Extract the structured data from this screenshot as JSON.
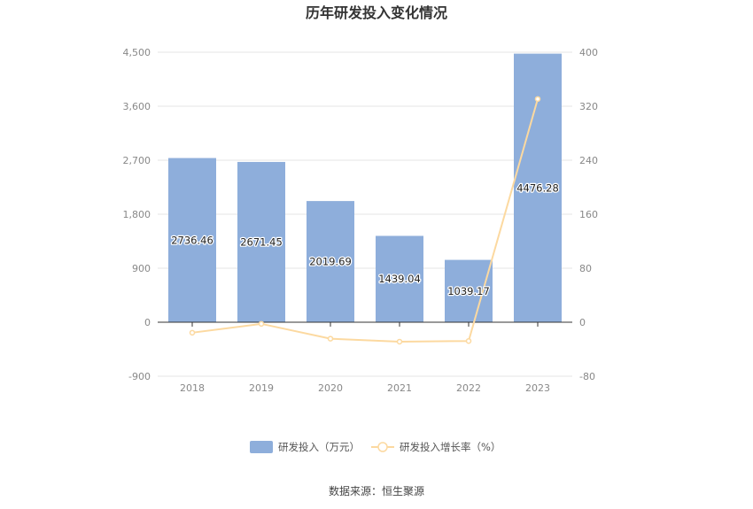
{
  "chart_data": {
    "type": "bar",
    "title": "历年研发投入变化情况",
    "categories": [
      "2018",
      "2019",
      "2020",
      "2021",
      "2022",
      "2023"
    ],
    "series": [
      {
        "name": "研发投入（万元）",
        "type": "bar",
        "axis": "left",
        "values": [
          2736.46,
          2671.45,
          2019.69,
          1439.04,
          1039.17,
          4476.28
        ],
        "labels": [
          "2736.46",
          "2671.45",
          "2019.69",
          "1439.04",
          "1039.17",
          "4476.28"
        ],
        "color": "#8eaedb"
      },
      {
        "name": "研发投入增长率（%）",
        "type": "line",
        "axis": "right",
        "values": [
          -15.5,
          -2.4,
          -24.4,
          -28.8,
          -27.8,
          330.7
        ],
        "color": "#fcd9a0"
      }
    ],
    "y_left": {
      "min": -900,
      "max": 4500,
      "ticks": [
        -900,
        0,
        900,
        1800,
        2700,
        3600,
        4500
      ],
      "tick_labels": [
        "-900",
        "0",
        "900",
        "1,800",
        "2,700",
        "3,600",
        "4,500"
      ]
    },
    "y_right": {
      "min": -80,
      "max": 400,
      "ticks": [
        -80,
        0,
        80,
        160,
        240,
        320,
        400
      ],
      "tick_labels": [
        "-80",
        "0",
        "80",
        "160",
        "240",
        "320",
        "400"
      ]
    },
    "grid": true,
    "legend_position": "bottom-center",
    "source": "数据来源：恒生聚源"
  }
}
